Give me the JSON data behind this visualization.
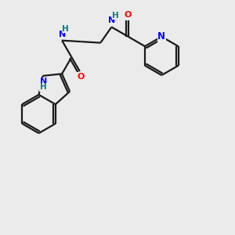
{
  "bg_color": "#ebebeb",
  "bond_color": "#1a1a1a",
  "N_color": "#0000ff",
  "O_color": "#ff0000",
  "H_color": "#008080",
  "line_width": 1.6,
  "figsize": [
    3.0,
    3.0
  ],
  "dpi": 100,
  "xlim": [
    0,
    10
  ],
  "ylim": [
    0,
    10
  ]
}
